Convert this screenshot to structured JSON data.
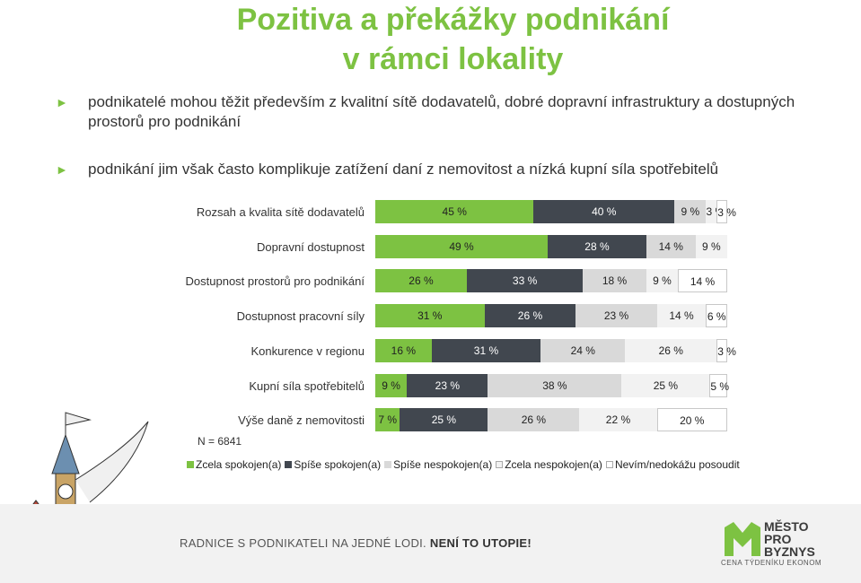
{
  "title": {
    "line1": "Pozitiva a překážky podnikání",
    "line2": "v rámci lokality"
  },
  "bullets": [
    "podnikatelé mohou těžit především z kvalitní sítě dodavatelů, dobré dopravní infrastruktury a dostupných prostorů pro podnikání",
    "podnikání jim však často komplikuje zatížení daní z nemovitost a nízká kupní síla spotřebitelů"
  ],
  "bullet_marker": "►",
  "sample": "N = 6841",
  "colors": {
    "zcela_spokojen": "#7dc242",
    "spise_spokojen": "#41474f",
    "spise_nespokojen": "#d9d9d9",
    "zcela_nespokojen": "#f2f2f2",
    "nevim": "#ffffff",
    "title": "#7dc242"
  },
  "chart_data": {
    "type": "bar",
    "orientation": "horizontal-stacked-100",
    "categories": [
      "Rozsah a kvalita sítě dodavatelů",
      "Dopravní dostupnost",
      "Dostupnost prostorů pro podnikání",
      "Dostupnost pracovní síly",
      "Konkurence v regionu",
      "Kupní síla spotřebitelů",
      "Výše daně z nemovitosti"
    ],
    "series": [
      {
        "name": "Zcela spokojen(a)",
        "values": [
          45,
          49,
          26,
          31,
          16,
          9,
          7
        ]
      },
      {
        "name": "Spíše spokojen(a)",
        "values": [
          40,
          28,
          33,
          26,
          31,
          23,
          25
        ]
      },
      {
        "name": "Spíše nespokojen(a)",
        "values": [
          9,
          14,
          18,
          23,
          24,
          38,
          26
        ]
      },
      {
        "name": "Zcela nespokojen(a)",
        "values": [
          3,
          9,
          9,
          14,
          26,
          25,
          22
        ]
      },
      {
        "name": "Nevím/nedokážu posoudit",
        "values": [
          3,
          0,
          14,
          6,
          3,
          5,
          20
        ]
      }
    ],
    "value_suffix": " %",
    "legend": "bottom"
  },
  "footer": {
    "slogan_part1": "RADNICE S PODNIKATELI NA JEDNÉ LODI.",
    "slogan_part2": "NENÍ TO UTOPIE!",
    "logo_line1": "MĚSTO",
    "logo_line2": "PRO",
    "logo_line3": "BYZNYS",
    "logo_sub": "CENA TÝDENÍKU EKONOM"
  }
}
